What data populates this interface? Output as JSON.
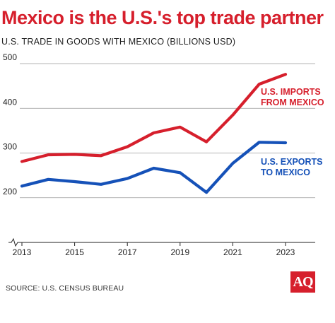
{
  "title": "Mexico is the U.S.'s top trade partner",
  "subtitle": "U.S. TRADE IN GOODS WITH MEXICO (BILLIONS USD)",
  "source": "SOURCE: U.S. CENSUS BUREAU",
  "logo": "AQ",
  "colors": {
    "imports": "#d61f2c",
    "exports": "#1551b8",
    "title": "#d61f2c"
  },
  "chart_data": {
    "type": "line",
    "title": "Mexico is the U.S.'s top trade partner",
    "subtitle": "U.S. TRADE IN GOODS WITH MEXICO (BILLIONS USD)",
    "x": [
      2013,
      2014,
      2015,
      2016,
      2017,
      2018,
      2019,
      2020,
      2021,
      2022,
      2023
    ],
    "x_tick_labels": [
      "2013",
      "2015",
      "2017",
      "2019",
      "2021",
      "2023"
    ],
    "y_tick_labels": [
      "200",
      "300",
      "400",
      "500"
    ],
    "ylim": [
      100,
      500
    ],
    "grid": true,
    "y_axis_break": true,
    "series": [
      {
        "name": "U.S. IMPORTS FROM MEXICO",
        "label_lines": [
          "U.S. IMPORTS",
          "FROM MEXICO"
        ],
        "color": "#d61f2c",
        "values": [
          281,
          296,
          297,
          294,
          314,
          345,
          358,
          325,
          385,
          454,
          476
        ]
      },
      {
        "name": "U.S. EXPORTS TO MEXICO",
        "label_lines": [
          "U.S. EXPORTS",
          "TO MEXICO"
        ],
        "color": "#1551b8",
        "values": [
          226,
          241,
          236,
          230,
          243,
          266,
          256,
          212,
          277,
          324,
          323
        ]
      }
    ]
  }
}
